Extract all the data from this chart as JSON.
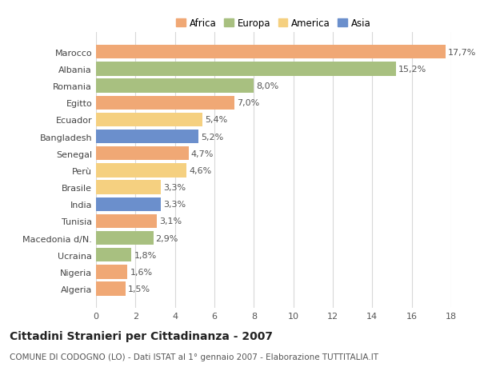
{
  "categories": [
    "Marocco",
    "Albania",
    "Romania",
    "Egitto",
    "Ecuador",
    "Bangladesh",
    "Senegal",
    "Perù",
    "Brasile",
    "India",
    "Tunisia",
    "Macedonia d/N.",
    "Ucraina",
    "Nigeria",
    "Algeria"
  ],
  "values": [
    17.7,
    15.2,
    8.0,
    7.0,
    5.4,
    5.2,
    4.7,
    4.6,
    3.3,
    3.3,
    3.1,
    2.9,
    1.8,
    1.6,
    1.5
  ],
  "labels": [
    "17,7%",
    "15,2%",
    "8,0%",
    "7,0%",
    "5,4%",
    "5,2%",
    "4,7%",
    "4,6%",
    "3,3%",
    "3,3%",
    "3,1%",
    "2,9%",
    "1,8%",
    "1,6%",
    "1,5%"
  ],
  "continents": [
    "Africa",
    "Europa",
    "Europa",
    "Africa",
    "America",
    "Asia",
    "Africa",
    "America",
    "America",
    "Asia",
    "Africa",
    "Europa",
    "Europa",
    "Africa",
    "Africa"
  ],
  "continent_colors": {
    "Africa": "#F0A875",
    "Europa": "#A8C080",
    "America": "#F5D080",
    "Asia": "#6B8FCC"
  },
  "legend_order": [
    "Africa",
    "Europa",
    "America",
    "Asia"
  ],
  "title": "Cittadini Stranieri per Cittadinanza - 2007",
  "subtitle": "COMUNE DI CODOGNO (LO) - Dati ISTAT al 1° gennaio 2007 - Elaborazione TUTTITALIA.IT",
  "xlim": [
    0,
    18
  ],
  "xticks": [
    0,
    2,
    4,
    6,
    8,
    10,
    12,
    14,
    16,
    18
  ],
  "background_color": "#ffffff",
  "grid_color": "#d8d8d8",
  "bar_height": 0.82,
  "label_fontsize": 8,
  "title_fontsize": 10,
  "subtitle_fontsize": 7.5,
  "tick_fontsize": 8,
  "legend_fontsize": 8.5
}
